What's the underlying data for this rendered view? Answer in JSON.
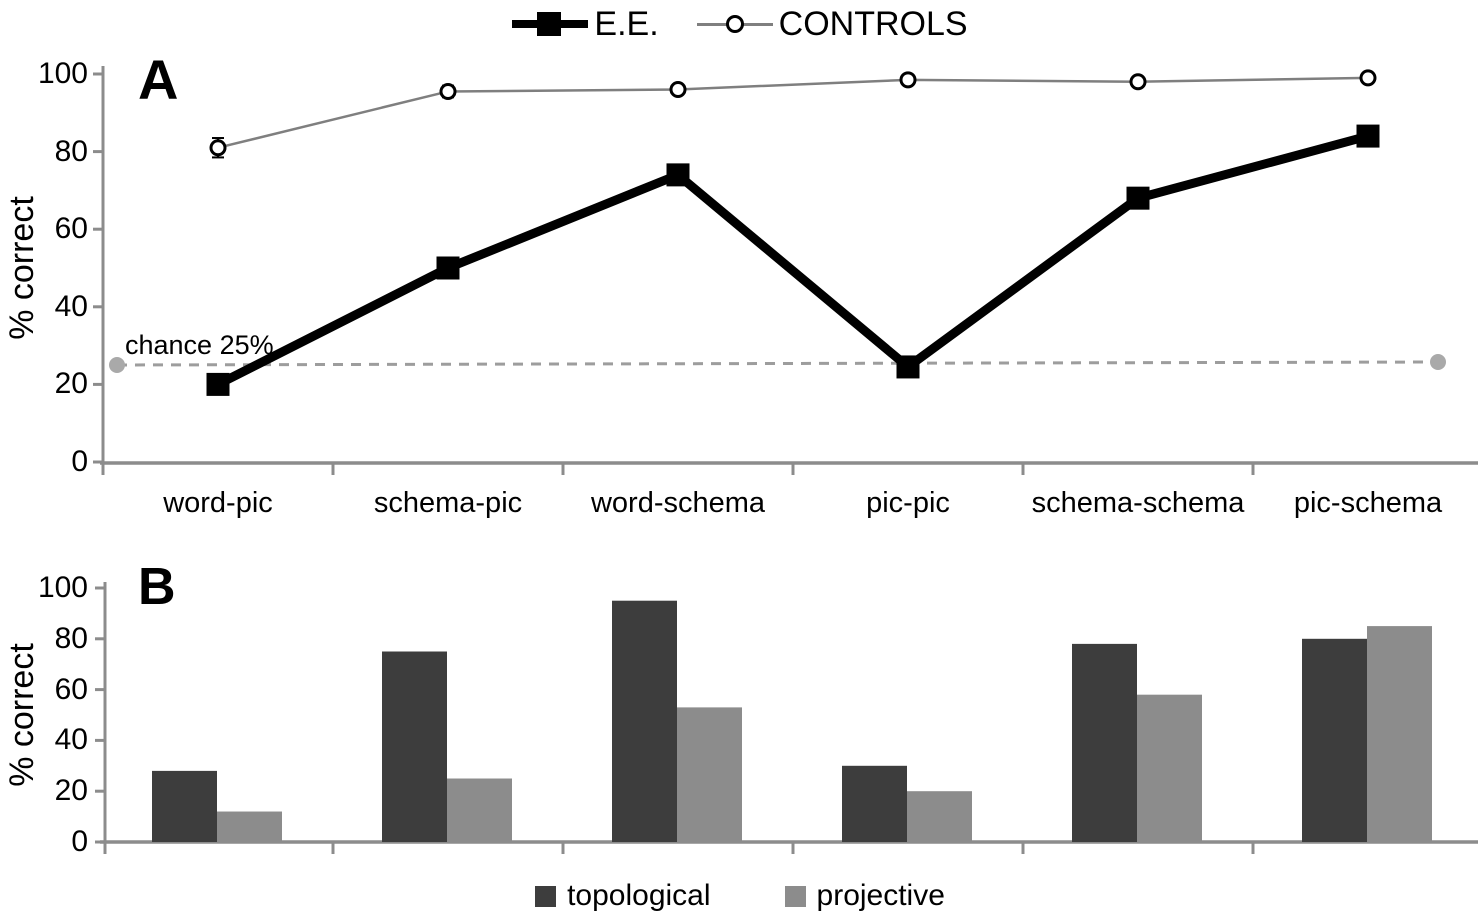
{
  "figure": {
    "background": "#ffffff"
  },
  "legend_top": {
    "items": [
      {
        "label": "E.E.",
        "marker": "filled-square-thick-line",
        "color": "#000000"
      },
      {
        "label": "CONTROLS",
        "marker": "open-circle-thin-line",
        "color": "#7f7f7f"
      }
    ]
  },
  "panel_a": {
    "label": "A",
    "ylabel": "% correct",
    "yticks": [
      0,
      20,
      40,
      60,
      80,
      100
    ],
    "annotation": "chance 25%"
  },
  "panel_b": {
    "label": "B",
    "ylabel": "% correct",
    "yticks": [
      0,
      20,
      40,
      60,
      80,
      100
    ]
  },
  "legend_bottom": {
    "items": [
      {
        "label": "topological",
        "color": "#3d3d3d"
      },
      {
        "label": "projective",
        "color": "#8c8c8c"
      }
    ]
  },
  "chart_data": [
    {
      "type": "line",
      "panel": "A",
      "title": "",
      "xlabel": "",
      "ylabel": "% correct",
      "ylim": [
        0,
        100
      ],
      "yticks": [
        0,
        20,
        40,
        60,
        80,
        100
      ],
      "grid": false,
      "legend_position": "top-center",
      "categories": [
        "word-pic",
        "schema-pic",
        "word-schema",
        "pic-pic",
        "schema-schema",
        "pic-schema"
      ],
      "series": [
        {
          "name": "E.E.",
          "values": [
            20,
            50,
            74,
            24.5,
            68,
            84
          ],
          "marker": "filled-square",
          "color": "#000000",
          "line_width": 9
        },
        {
          "name": "CONTROLS",
          "values": [
            81,
            95.5,
            96,
            98.5,
            98,
            99
          ],
          "errors": [
            2.5,
            1.5,
            1,
            0.5,
            0.5,
            1
          ],
          "marker": "open-circle",
          "color": "#7f7f7f",
          "line_width": 2.5
        }
      ],
      "annotations": [
        {
          "text": "chance 25%",
          "y": 25,
          "style": "dashed-gray-line",
          "line_color": "#9d9d9d",
          "end_dot_color": "#a9a9a9"
        }
      ]
    },
    {
      "type": "bar",
      "panel": "B",
      "title": "",
      "xlabel": "",
      "ylabel": "% correct",
      "ylim": [
        0,
        100
      ],
      "yticks": [
        0,
        20,
        40,
        60,
        80,
        100
      ],
      "grid": false,
      "legend_position": "bottom-center",
      "categories": [
        "word-pic",
        "schema-pic",
        "word-schema",
        "pic-pic",
        "schema-schema",
        "pic-schema"
      ],
      "series": [
        {
          "name": "topological",
          "values": [
            28,
            75,
            95,
            30,
            78,
            80
          ],
          "color": "#3d3d3d"
        },
        {
          "name": "projective",
          "values": [
            12,
            25,
            53,
            20,
            58,
            85
          ],
          "color": "#8c8c8c"
        }
      ]
    }
  ]
}
